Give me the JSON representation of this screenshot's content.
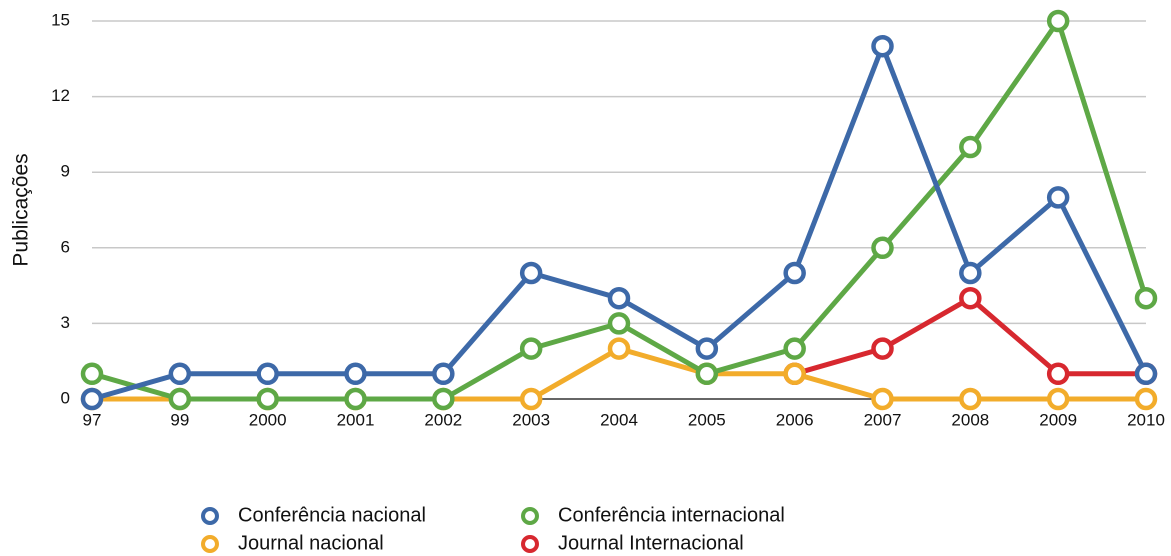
{
  "chart_data": {
    "type": "line",
    "y_label": "Publicações",
    "categories": [
      "97",
      "99",
      "2000",
      "2001",
      "2002",
      "2003",
      "2004",
      "2005",
      "2006",
      "2007",
      "2008",
      "2009",
      "2010"
    ],
    "series": [
      {
        "name": "Conferência nacional",
        "color": "#3d69a8",
        "values": [
          0,
          1,
          1,
          1,
          1,
          5,
          4,
          2,
          5,
          14,
          5,
          8,
          1
        ]
      },
      {
        "name": "Conferência internacional",
        "color": "#5ea846",
        "values": [
          1,
          0,
          0,
          0,
          0,
          2,
          3,
          1,
          2,
          6,
          10,
          15,
          4
        ]
      },
      {
        "name": "Journal nacional",
        "color": "#f2ac2b",
        "values": [
          0,
          0,
          0,
          0,
          0,
          0,
          2,
          1,
          1,
          0,
          0,
          0,
          0
        ]
      },
      {
        "name": "Journal Internacional",
        "color": "#d7282f",
        "values": [
          null,
          null,
          null,
          null,
          null,
          null,
          null,
          null,
          1,
          2,
          4,
          1,
          1
        ]
      }
    ],
    "ylim": [
      0,
      15
    ],
    "yticks": [
      0,
      3,
      6,
      9,
      12,
      15
    ],
    "grid": true,
    "legend": "bottom"
  }
}
